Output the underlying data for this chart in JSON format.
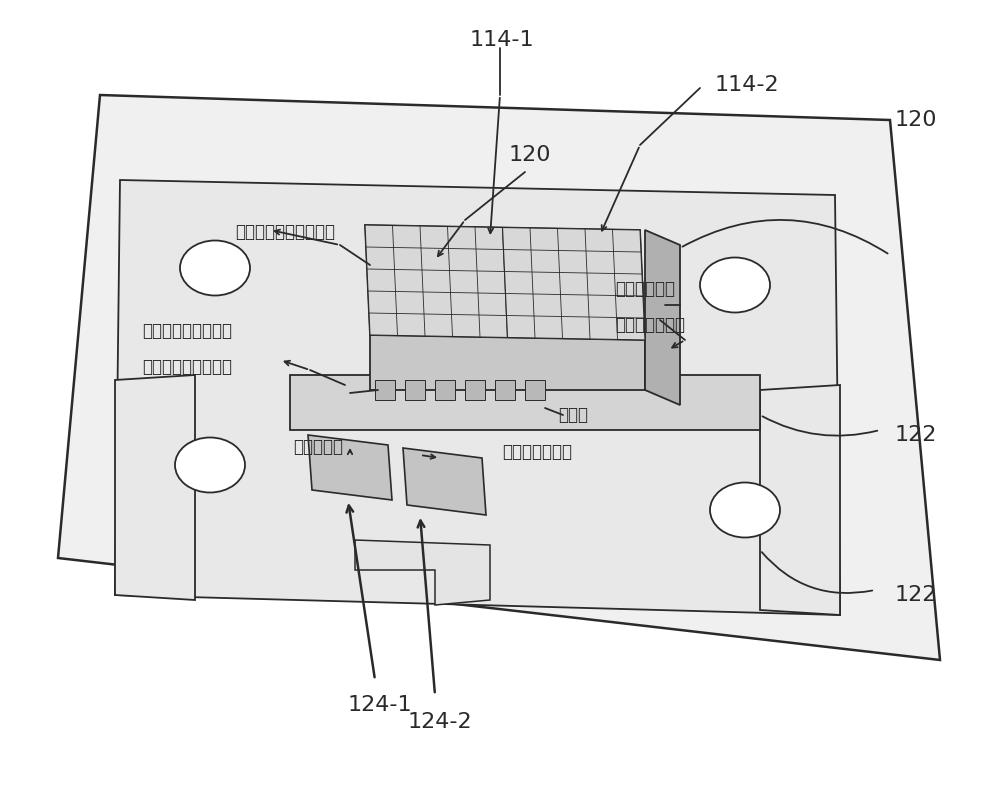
{
  "bg_color": "#ffffff",
  "lc": "#2a2a2a",
  "fc_board": "#f0f0f0",
  "fc_busbar_region": "#e8e8e8",
  "fc_busbar": "#d0d0d0",
  "fc_sensor_top": "#e2e2e2",
  "fc_sensor_front": "#c8c8c8",
  "fc_sensor_right": "#b0b0b0",
  "fc_grid": "#d8d8d8",
  "fc_pad": "#c4c4c4",
  "fc_hole": "#ffffff",
  "labels": {
    "114_1": "114-1",
    "114_2": "114-2",
    "120a": "120",
    "120b": "120",
    "122a": "122",
    "122b": "122",
    "124_1": "124-1",
    "124_2": "124-2",
    "busbar_sensor": "汇流排上的电流传感器",
    "interface_pins_l1": "用于显示电流和焊料",
    "interface_pins_l2": "连接结构的接口引脚",
    "solder_void_l1": "传感器和底面",
    "solder_void_l2": "之间的焊料空窟",
    "busbar": "汇流排",
    "bottom_sensor": "底面传感器",
    "temp_current": "温度和电流检测"
  }
}
